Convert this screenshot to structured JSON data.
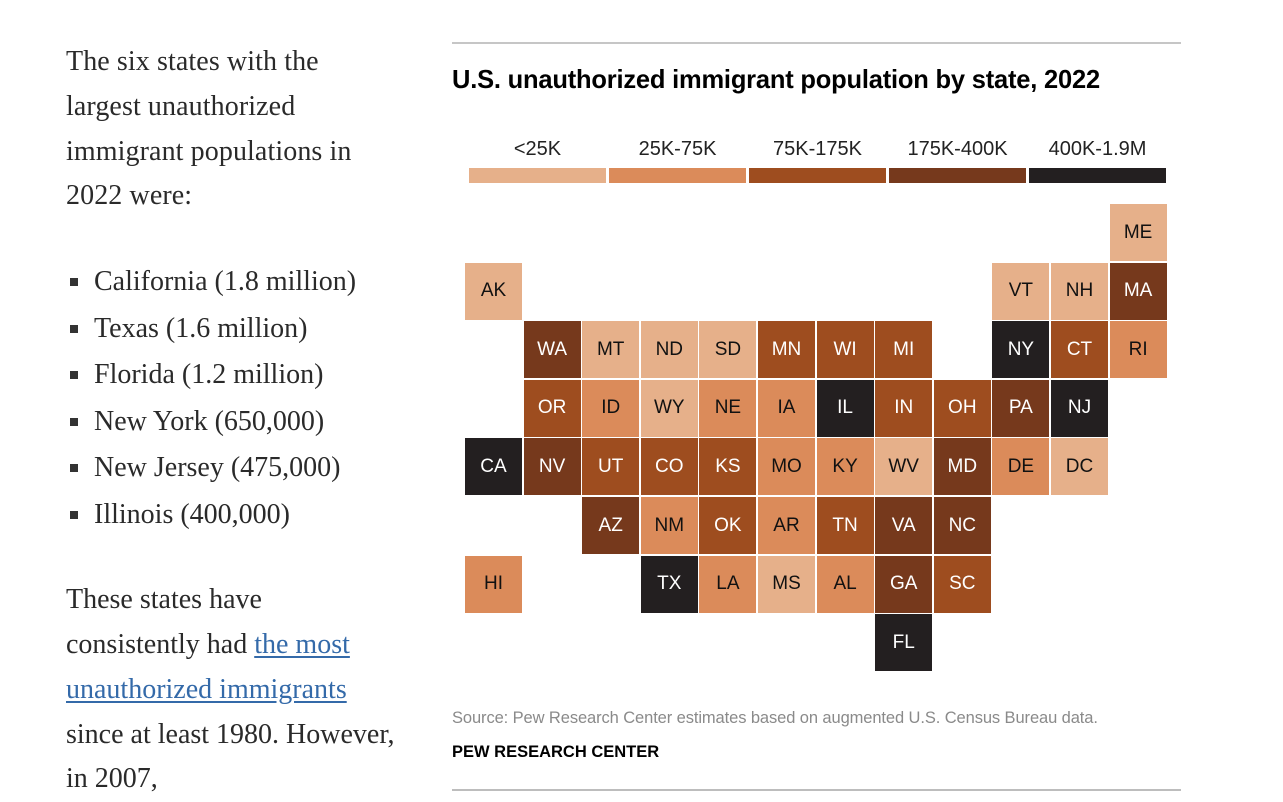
{
  "article": {
    "intro": "The six states with the largest unauthorized immigrant populations in 2022 were:",
    "list": [
      "California (1.8 million)",
      "Texas (1.6 million)",
      "Florida (1.2 million)",
      "New York (650,000)",
      "New Jersey (475,000)",
      "Illinois (400,000)"
    ],
    "outro_before": "These states have consistently had ",
    "outro_link": "the most unauthorized immigrants",
    "outro_after": " since at least 1980. However, in 2007,"
  },
  "chart_data": {
    "type": "heatmap",
    "subtype": "tile-grid-map",
    "title": "U.S. unauthorized immigrant population by state, 2022",
    "legend": [
      {
        "label": "<25K",
        "color": "#e6b08a",
        "text": "#111111"
      },
      {
        "label": "25K-75K",
        "color": "#db8b5a",
        "text": "#111111"
      },
      {
        "label": "75K-175K",
        "color": "#9e4d1f",
        "text": "#ffffff"
      },
      {
        "label": "175K-400K",
        "color": "#76391c",
        "text": "#ffffff"
      },
      {
        "label": "400K-1.9M",
        "color": "#231f20",
        "text": "#ffffff"
      }
    ],
    "states": [
      {
        "abbr": "ME",
        "row": 0,
        "col": 11,
        "bin": 0
      },
      {
        "abbr": "AK",
        "row": 1,
        "col": 0,
        "bin": 0
      },
      {
        "abbr": "VT",
        "row": 1,
        "col": 9,
        "bin": 0
      },
      {
        "abbr": "NH",
        "row": 1,
        "col": 10,
        "bin": 0
      },
      {
        "abbr": "MA",
        "row": 1,
        "col": 11,
        "bin": 3
      },
      {
        "abbr": "WA",
        "row": 2,
        "col": 1,
        "bin": 3
      },
      {
        "abbr": "MT",
        "row": 2,
        "col": 2,
        "bin": 0
      },
      {
        "abbr": "ND",
        "row": 2,
        "col": 3,
        "bin": 0
      },
      {
        "abbr": "SD",
        "row": 2,
        "col": 4,
        "bin": 0
      },
      {
        "abbr": "MN",
        "row": 2,
        "col": 5,
        "bin": 2
      },
      {
        "abbr": "WI",
        "row": 2,
        "col": 6,
        "bin": 2
      },
      {
        "abbr": "MI",
        "row": 2,
        "col": 7,
        "bin": 2
      },
      {
        "abbr": "NY",
        "row": 2,
        "col": 9,
        "bin": 4
      },
      {
        "abbr": "CT",
        "row": 2,
        "col": 10,
        "bin": 2
      },
      {
        "abbr": "RI",
        "row": 2,
        "col": 11,
        "bin": 1
      },
      {
        "abbr": "OR",
        "row": 3,
        "col": 1,
        "bin": 2
      },
      {
        "abbr": "ID",
        "row": 3,
        "col": 2,
        "bin": 1
      },
      {
        "abbr": "WY",
        "row": 3,
        "col": 3,
        "bin": 0
      },
      {
        "abbr": "NE",
        "row": 3,
        "col": 4,
        "bin": 1
      },
      {
        "abbr": "IA",
        "row": 3,
        "col": 5,
        "bin": 1
      },
      {
        "abbr": "IL",
        "row": 3,
        "col": 6,
        "bin": 4
      },
      {
        "abbr": "IN",
        "row": 3,
        "col": 7,
        "bin": 2
      },
      {
        "abbr": "OH",
        "row": 3,
        "col": 8,
        "bin": 2
      },
      {
        "abbr": "PA",
        "row": 3,
        "col": 9,
        "bin": 3
      },
      {
        "abbr": "NJ",
        "row": 3,
        "col": 10,
        "bin": 4
      },
      {
        "abbr": "CA",
        "row": 4,
        "col": 0,
        "bin": 4
      },
      {
        "abbr": "NV",
        "row": 4,
        "col": 1,
        "bin": 3
      },
      {
        "abbr": "UT",
        "row": 4,
        "col": 2,
        "bin": 2
      },
      {
        "abbr": "CO",
        "row": 4,
        "col": 3,
        "bin": 2
      },
      {
        "abbr": "KS",
        "row": 4,
        "col": 4,
        "bin": 2
      },
      {
        "abbr": "MO",
        "row": 4,
        "col": 5,
        "bin": 1
      },
      {
        "abbr": "KY",
        "row": 4,
        "col": 6,
        "bin": 1
      },
      {
        "abbr": "WV",
        "row": 4,
        "col": 7,
        "bin": 0
      },
      {
        "abbr": "MD",
        "row": 4,
        "col": 8,
        "bin": 3
      },
      {
        "abbr": "DE",
        "row": 4,
        "col": 9,
        "bin": 1
      },
      {
        "abbr": "DC",
        "row": 4,
        "col": 10,
        "bin": 0
      },
      {
        "abbr": "AZ",
        "row": 5,
        "col": 2,
        "bin": 3
      },
      {
        "abbr": "NM",
        "row": 5,
        "col": 3,
        "bin": 1
      },
      {
        "abbr": "OK",
        "row": 5,
        "col": 4,
        "bin": 2
      },
      {
        "abbr": "AR",
        "row": 5,
        "col": 5,
        "bin": 1
      },
      {
        "abbr": "TN",
        "row": 5,
        "col": 6,
        "bin": 2
      },
      {
        "abbr": "VA",
        "row": 5,
        "col": 7,
        "bin": 3
      },
      {
        "abbr": "NC",
        "row": 5,
        "col": 8,
        "bin": 3
      },
      {
        "abbr": "HI",
        "row": 6,
        "col": 0,
        "bin": 1
      },
      {
        "abbr": "TX",
        "row": 6,
        "col": 3,
        "bin": 4
      },
      {
        "abbr": "LA",
        "row": 6,
        "col": 4,
        "bin": 1
      },
      {
        "abbr": "MS",
        "row": 6,
        "col": 5,
        "bin": 0
      },
      {
        "abbr": "AL",
        "row": 6,
        "col": 6,
        "bin": 1
      },
      {
        "abbr": "GA",
        "row": 6,
        "col": 7,
        "bin": 3
      },
      {
        "abbr": "SC",
        "row": 6,
        "col": 8,
        "bin": 2
      },
      {
        "abbr": "FL",
        "row": 7,
        "col": 7,
        "bin": 4
      }
    ],
    "source": "Source: Pew Research Center estimates based on augmented U.S. Census Bureau data.",
    "brand": "PEW RESEARCH CENTER"
  }
}
